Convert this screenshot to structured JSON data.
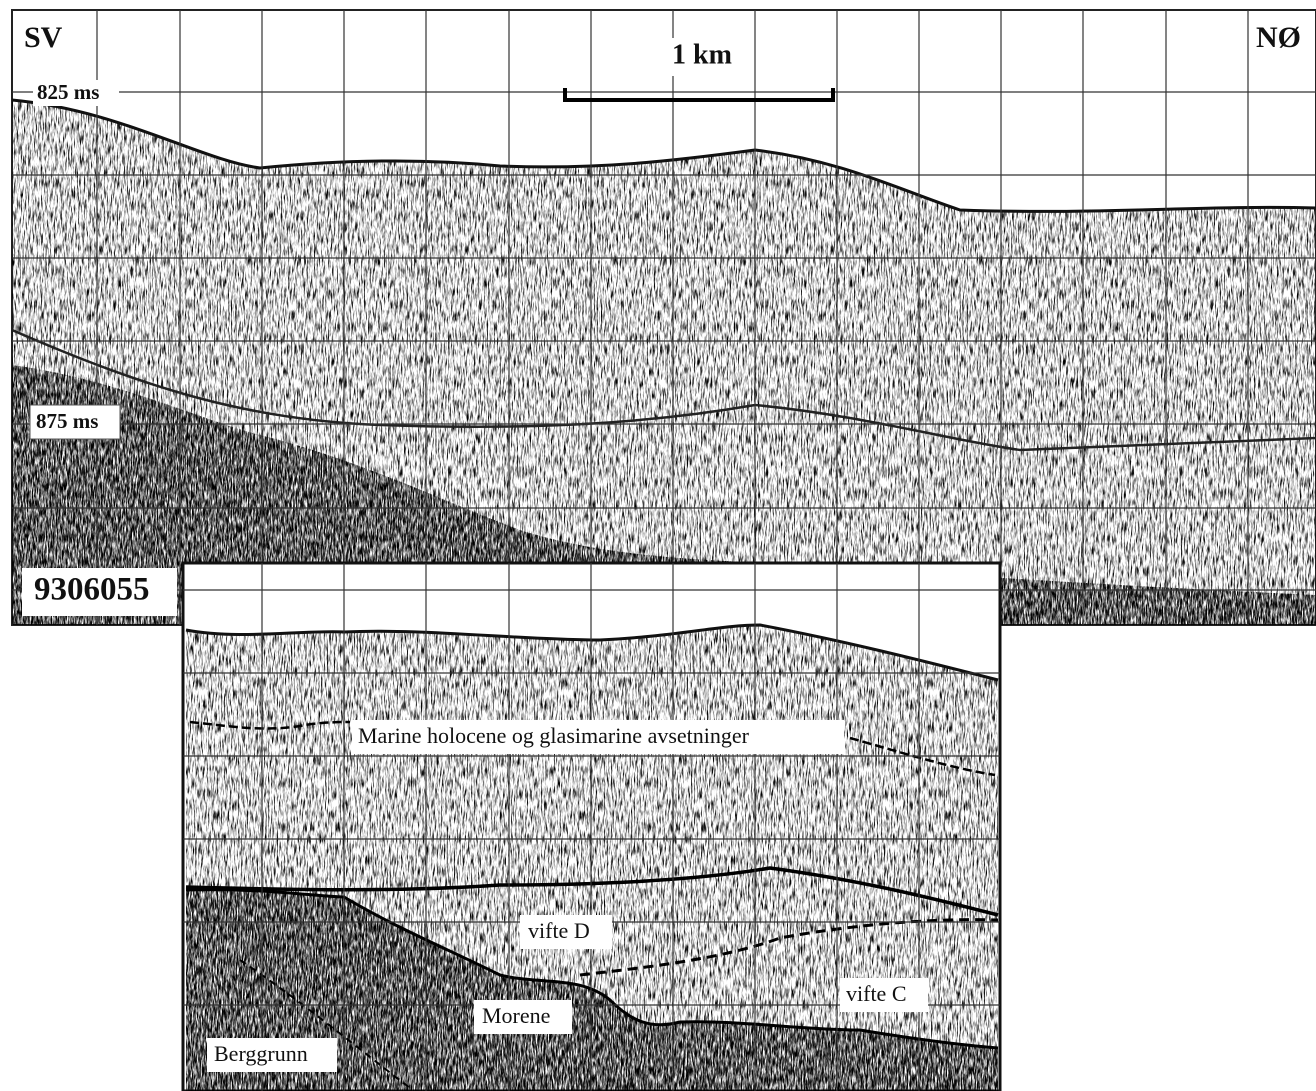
{
  "profile": {
    "direction_left": "SV",
    "direction_right": "NØ",
    "scale_bar": "1 km",
    "time_labels": [
      "825 ms",
      "875 ms"
    ],
    "line_id": "9306055"
  },
  "interpretation": {
    "sediments": "Marine holocene og  glasimarine avsetninger",
    "fan_d": "vifte D",
    "fan_c": "vifte C",
    "moraine": "Morene",
    "bedrock": "Berggrunn"
  }
}
